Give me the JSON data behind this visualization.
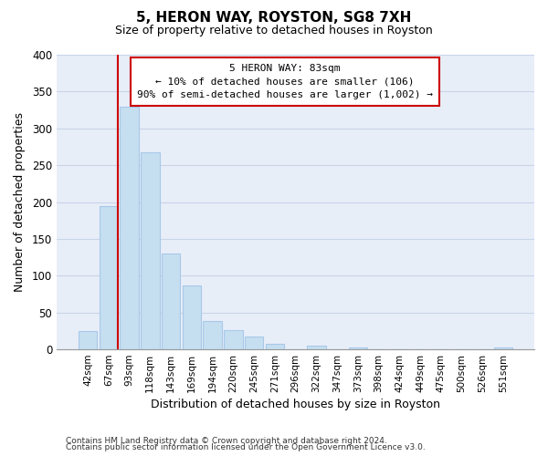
{
  "title": "5, HERON WAY, ROYSTON, SG8 7XH",
  "subtitle": "Size of property relative to detached houses in Royston",
  "xlabel": "Distribution of detached houses by size in Royston",
  "ylabel": "Number of detached properties",
  "bar_labels": [
    "42sqm",
    "67sqm",
    "93sqm",
    "118sqm",
    "143sqm",
    "169sqm",
    "194sqm",
    "220sqm",
    "245sqm",
    "271sqm",
    "296sqm",
    "322sqm",
    "347sqm",
    "373sqm",
    "398sqm",
    "424sqm",
    "449sqm",
    "475sqm",
    "500sqm",
    "526sqm",
    "551sqm"
  ],
  "bar_values": [
    25,
    195,
    330,
    267,
    130,
    87,
    38,
    26,
    18,
    7,
    0,
    5,
    0,
    3,
    0,
    0,
    0,
    0,
    0,
    0,
    3
  ],
  "bar_color": "#c5dff0",
  "bar_edge_color": "#a8c8e8",
  "vline_color": "#cc0000",
  "annotation_title": "5 HERON WAY: 83sqm",
  "annotation_line1": "← 10% of detached houses are smaller (106)",
  "annotation_line2": "90% of semi-detached houses are larger (1,002) →",
  "annotation_box_color": "#ffffff",
  "annotation_box_edge": "#cc0000",
  "ylim": [
    0,
    400
  ],
  "yticks": [
    0,
    50,
    100,
    150,
    200,
    250,
    300,
    350,
    400
  ],
  "grid_color": "#c8d4e8",
  "background_color": "#e8eef8",
  "footer1": "Contains HM Land Registry data © Crown copyright and database right 2024.",
  "footer2": "Contains public sector information licensed under the Open Government Licence v3.0."
}
